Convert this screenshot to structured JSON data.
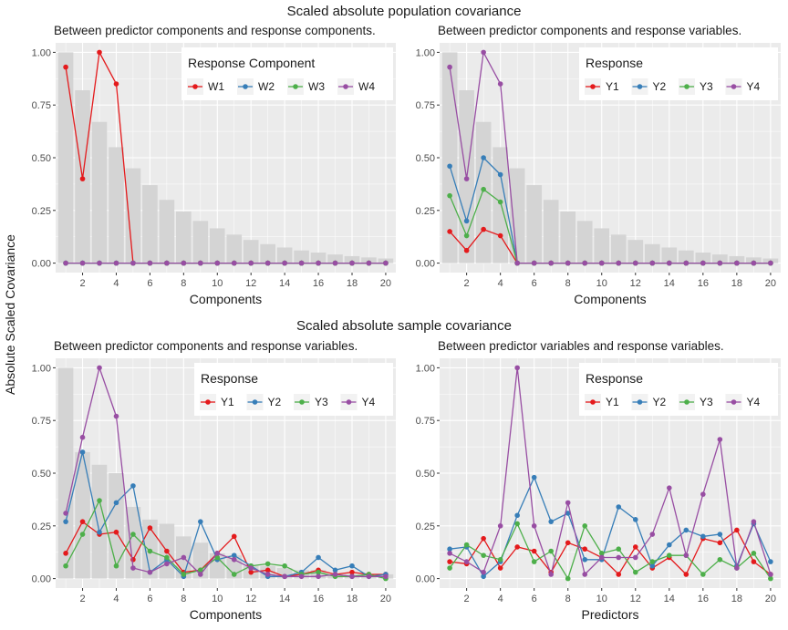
{
  "page": {
    "top_title": "Scaled absolute population covariance",
    "bottom_title": "Scaled absolute sample covariance",
    "y_axis_title": "Absolute Scaled Covariance"
  },
  "colors": {
    "red": "#e41a1c",
    "blue": "#377eb8",
    "green": "#4daf4a",
    "purple": "#984ea3",
    "bar": "#d4d4d4",
    "panel_bg": "#ebebeb",
    "grid": "#ffffff"
  },
  "chart_data": [
    {
      "type": "bar+line",
      "subtitle": "Between predictor components and response components.",
      "xlabel": "Components",
      "ylabel": "Absolute Scaled Covariance",
      "x": [
        1,
        2,
        3,
        4,
        5,
        6,
        7,
        8,
        9,
        10,
        11,
        12,
        13,
        14,
        15,
        16,
        17,
        18,
        19,
        20
      ],
      "xticks": [
        2,
        4,
        6,
        8,
        10,
        12,
        14,
        16,
        18,
        20
      ],
      "yticks": [
        "0.00",
        "0.25",
        "0.50",
        "0.75",
        "1.00"
      ],
      "ylim": [
        0,
        1
      ],
      "bars": [
        1.0,
        0.82,
        0.67,
        0.55,
        0.45,
        0.37,
        0.3,
        0.245,
        0.2,
        0.165,
        0.135,
        0.11,
        0.09,
        0.074,
        0.06,
        0.05,
        0.041,
        0.033,
        0.027,
        0.022
      ],
      "legend_title": "Response Component",
      "series": [
        {
          "name": "W1",
          "color": "#e41a1c",
          "values": [
            0.93,
            0.4,
            1.0,
            0.85,
            0,
            0,
            0,
            0,
            0,
            0,
            0,
            0,
            0,
            0,
            0,
            0,
            0,
            0,
            0,
            0
          ]
        },
        {
          "name": "W2",
          "color": "#377eb8",
          "values": [
            0,
            0,
            0,
            0,
            0,
            0,
            0,
            0,
            0,
            0,
            0,
            0,
            0,
            0,
            0,
            0,
            0,
            0,
            0,
            0
          ]
        },
        {
          "name": "W3",
          "color": "#4daf4a",
          "values": [
            0,
            0,
            0,
            0,
            0,
            0,
            0,
            0,
            0,
            0,
            0,
            0,
            0,
            0,
            0,
            0,
            0,
            0,
            0,
            0
          ]
        },
        {
          "name": "W4",
          "color": "#984ea3",
          "values": [
            0,
            0,
            0,
            0,
            0,
            0,
            0,
            0,
            0,
            0,
            0,
            0,
            0,
            0,
            0,
            0,
            0,
            0,
            0,
            0
          ]
        }
      ]
    },
    {
      "type": "bar+line",
      "subtitle": "Between predictor components and response variables.",
      "xlabel": "Components",
      "ylabel": "Absolute Scaled Covariance",
      "x": [
        1,
        2,
        3,
        4,
        5,
        6,
        7,
        8,
        9,
        10,
        11,
        12,
        13,
        14,
        15,
        16,
        17,
        18,
        19,
        20
      ],
      "xticks": [
        2,
        4,
        6,
        8,
        10,
        12,
        14,
        16,
        18,
        20
      ],
      "yticks": [
        "0.00",
        "0.25",
        "0.50",
        "0.75",
        "1.00"
      ],
      "ylim": [
        0,
        1
      ],
      "bars": [
        1.0,
        0.82,
        0.67,
        0.55,
        0.45,
        0.37,
        0.3,
        0.245,
        0.2,
        0.165,
        0.135,
        0.11,
        0.09,
        0.074,
        0.06,
        0.05,
        0.041,
        0.033,
        0.027,
        0.022
      ],
      "legend_title": "Response",
      "series": [
        {
          "name": "Y1",
          "color": "#e41a1c",
          "values": [
            0.15,
            0.06,
            0.16,
            0.13,
            0,
            0,
            0,
            0,
            0,
            0,
            0,
            0,
            0,
            0,
            0,
            0,
            0,
            0,
            0,
            0
          ]
        },
        {
          "name": "Y2",
          "color": "#377eb8",
          "values": [
            0.46,
            0.2,
            0.5,
            0.42,
            0,
            0,
            0,
            0,
            0,
            0,
            0,
            0,
            0,
            0,
            0,
            0,
            0,
            0,
            0,
            0
          ]
        },
        {
          "name": "Y3",
          "color": "#4daf4a",
          "values": [
            0.32,
            0.13,
            0.35,
            0.29,
            0,
            0,
            0,
            0,
            0,
            0,
            0,
            0,
            0,
            0,
            0,
            0,
            0,
            0,
            0,
            0
          ]
        },
        {
          "name": "Y4",
          "color": "#984ea3",
          "values": [
            0.93,
            0.4,
            1.0,
            0.85,
            0,
            0,
            0,
            0,
            0,
            0,
            0,
            0,
            0,
            0,
            0,
            0,
            0,
            0,
            0,
            0
          ]
        }
      ]
    },
    {
      "type": "bar+line",
      "subtitle": "Between predictor components and response variables.",
      "xlabel": "Components",
      "ylabel": "Absolute Scaled Covariance",
      "x": [
        1,
        2,
        3,
        4,
        5,
        6,
        7,
        8,
        9,
        10,
        11,
        12,
        13,
        14,
        15,
        16,
        17,
        18,
        19,
        20
      ],
      "xticks": [
        2,
        4,
        6,
        8,
        10,
        12,
        14,
        16,
        18,
        20
      ],
      "yticks": [
        "0.00",
        "0.25",
        "0.50",
        "0.75",
        "1.00"
      ],
      "ylim": [
        0,
        1
      ],
      "bars": [
        1.0,
        0.6,
        0.54,
        0.5,
        0.34,
        0.28,
        0.26,
        0.2,
        0.17,
        0.12,
        0.11,
        0.06,
        0.06,
        0.05,
        0.04,
        0.04,
        0.02,
        0.02,
        0.02,
        0.02
      ],
      "legend_title": "Response",
      "series": [
        {
          "name": "Y1",
          "color": "#e41a1c",
          "values": [
            0.12,
            0.27,
            0.21,
            0.22,
            0.09,
            0.24,
            0.13,
            0.03,
            0.04,
            0.12,
            0.2,
            0.03,
            0.04,
            0.01,
            0.02,
            0.04,
            0.02,
            0.03,
            0.02,
            0.02
          ]
        },
        {
          "name": "Y2",
          "color": "#377eb8",
          "values": [
            0.27,
            0.6,
            0.22,
            0.36,
            0.44,
            0.03,
            0.09,
            0.01,
            0.27,
            0.09,
            0.11,
            0.06,
            0.01,
            0.01,
            0.03,
            0.1,
            0.04,
            0.06,
            0.01,
            0.02
          ]
        },
        {
          "name": "Y3",
          "color": "#4daf4a",
          "values": [
            0.06,
            0.21,
            0.37,
            0.06,
            0.21,
            0.13,
            0.1,
            0.02,
            0.04,
            0.1,
            0.02,
            0.06,
            0.07,
            0.06,
            0.02,
            0.03,
            0.01,
            0.01,
            0.02,
            0.0
          ]
        },
        {
          "name": "Y4",
          "color": "#984ea3",
          "values": [
            0.31,
            0.67,
            1.0,
            0.77,
            0.05,
            0.03,
            0.07,
            0.1,
            0.02,
            0.12,
            0.09,
            0.05,
            0.02,
            0.01,
            0.01,
            0.01,
            0.02,
            0.01,
            0.01,
            0.01
          ]
        }
      ]
    },
    {
      "type": "line",
      "subtitle": "Between predictor variables and response variables.",
      "xlabel": "Predictors",
      "ylabel": "Absolute Scaled Covariance",
      "x": [
        1,
        2,
        3,
        4,
        5,
        6,
        7,
        8,
        9,
        10,
        11,
        12,
        13,
        14,
        15,
        16,
        17,
        18,
        19,
        20
      ],
      "xticks": [
        2,
        4,
        6,
        8,
        10,
        12,
        14,
        16,
        18,
        20
      ],
      "yticks": [
        "0.00",
        "0.25",
        "0.50",
        "0.75",
        "1.00"
      ],
      "ylim": [
        0,
        1
      ],
      "bars": [],
      "legend_title": "Response",
      "series": [
        {
          "name": "Y1",
          "color": "#e41a1c",
          "values": [
            0.08,
            0.07,
            0.19,
            0.05,
            0.15,
            0.13,
            0.03,
            0.17,
            0.14,
            0.1,
            0.02,
            0.15,
            0.05,
            0.1,
            0.02,
            0.19,
            0.17,
            0.23,
            0.08,
            0.02
          ]
        },
        {
          "name": "Y2",
          "color": "#377eb8",
          "values": [
            0.14,
            0.15,
            0.01,
            0.08,
            0.3,
            0.48,
            0.27,
            0.31,
            0.09,
            0.09,
            0.34,
            0.28,
            0.06,
            0.16,
            0.23,
            0.2,
            0.21,
            0.06,
            0.26,
            0.08
          ]
        },
        {
          "name": "Y3",
          "color": "#4daf4a",
          "values": [
            0.05,
            0.16,
            0.11,
            0.09,
            0.26,
            0.08,
            0.13,
            0.0,
            0.25,
            0.12,
            0.14,
            0.03,
            0.08,
            0.11,
            0.11,
            0.02,
            0.09,
            0.05,
            0.12,
            0.0
          ]
        },
        {
          "name": "Y4",
          "color": "#984ea3",
          "values": [
            0.12,
            0.08,
            0.03,
            0.25,
            1.0,
            0.25,
            0.02,
            0.36,
            0.02,
            0.1,
            0.1,
            0.1,
            0.21,
            0.43,
            0.11,
            0.4,
            0.66,
            0.05,
            0.27,
            0.02
          ]
        }
      ]
    }
  ]
}
